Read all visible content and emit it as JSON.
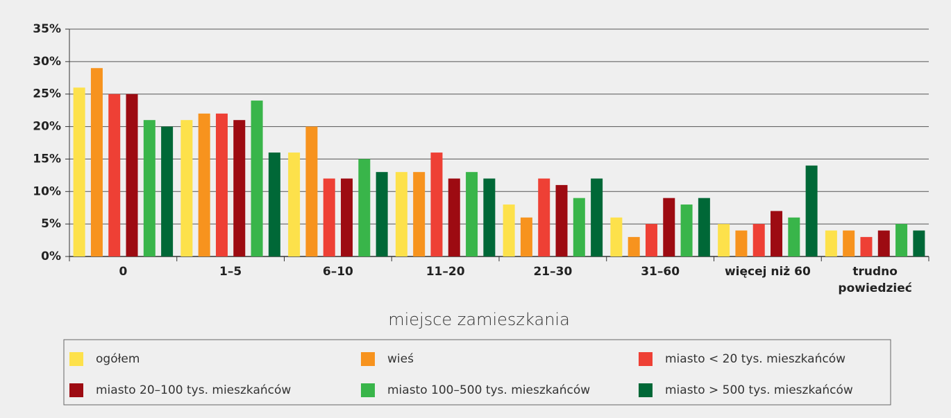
{
  "chart_data": {
    "type": "bar",
    "x_label": "miejsce zamieszkania",
    "categories": [
      "0",
      "1–5",
      "6–10",
      "11–20",
      "21–30",
      "31–60",
      "więcej niż 60",
      "trudno powiedzieć"
    ],
    "series": [
      {
        "name": "ogółem",
        "color": "#fde14b",
        "values": [
          26,
          21,
          16,
          13,
          8,
          6,
          5,
          4
        ]
      },
      {
        "name": "wieś",
        "color": "#f7931e",
        "values": [
          29,
          22,
          20,
          13,
          6,
          3,
          4,
          4
        ]
      },
      {
        "name": "miasto < 20 tys. mieszkańców",
        "color": "#ee4035",
        "values": [
          25,
          22,
          12,
          16,
          12,
          5,
          5,
          3
        ]
      },
      {
        "name": "miasto 20–100 tys. mieszkańców",
        "color": "#9d0b12",
        "values": [
          25,
          21,
          12,
          12,
          11,
          9,
          7,
          4
        ]
      },
      {
        "name": "miasto 100–500 tys. mieszkańców",
        "color": "#39b54a",
        "values": [
          21,
          24,
          15,
          13,
          9,
          8,
          6,
          5
        ]
      },
      {
        "name": "miasto > 500 tys. mieszkańców",
        "color": "#006837",
        "values": [
          20,
          16,
          13,
          12,
          12,
          9,
          14,
          4
        ]
      }
    ],
    "ylim": [
      0,
      35
    ],
    "yticks": [
      {
        "value": 0,
        "label": "0%"
      },
      {
        "value": 5,
        "label": "5%"
      },
      {
        "value": 10,
        "label": "10%"
      },
      {
        "value": 15,
        "label": "15%"
      },
      {
        "value": 20,
        "label": "20%"
      },
      {
        "value": 25,
        "label": "25%"
      },
      {
        "value": 30,
        "label": "30%"
      },
      {
        "value": 35,
        "label": "35%"
      }
    ],
    "grid": true
  }
}
